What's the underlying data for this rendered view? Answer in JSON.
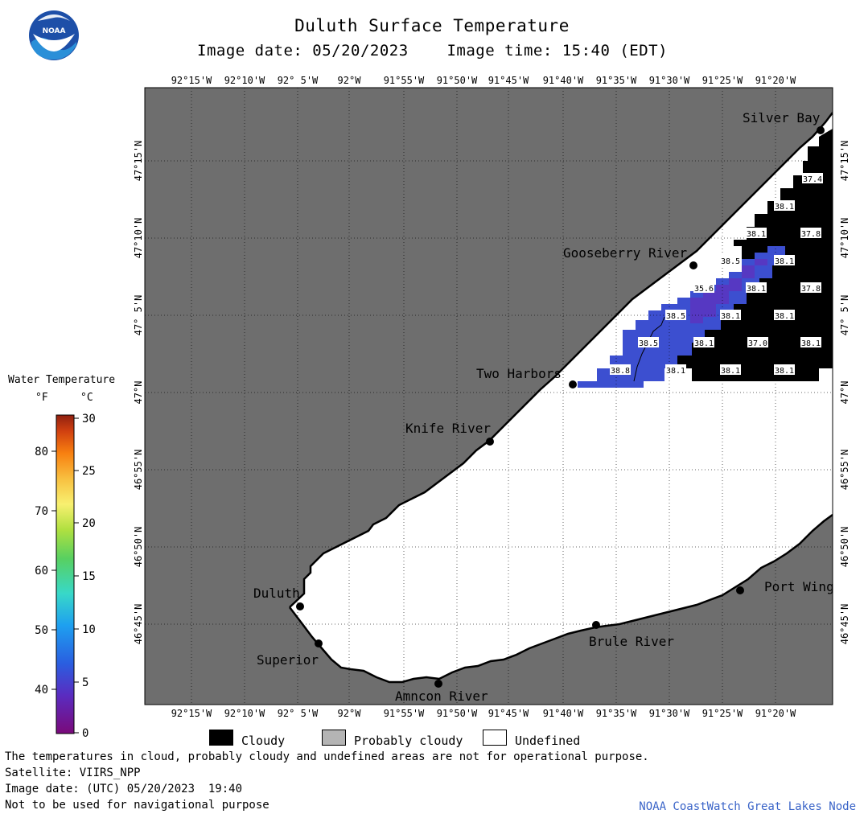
{
  "header": {
    "title": "Duluth Surface Temperature",
    "image_date_label": "Image date: 05/20/2023",
    "image_time_label": "Image time: 15:40 (EDT)"
  },
  "logo": {
    "text": "NOAA",
    "color": "#1d4fa8"
  },
  "map": {
    "longitude_ticks": [
      "92°15'W",
      "92°10'W",
      "92° 5'W",
      "92°W",
      "91°55'W",
      "91°50'W",
      "91°45'W",
      "91°40'W",
      "91°35'W",
      "91°30'W",
      "91°25'W",
      "91°20'W"
    ],
    "latitude_ticks": [
      "47°15'N",
      "47°10'N",
      "47° 5'N",
      "47°N",
      "46°55'N",
      "46°50'N",
      "46°45'N"
    ],
    "places": [
      {
        "name": "Silver Bay"
      },
      {
        "name": "Gooseberry River"
      },
      {
        "name": "Two Harbors"
      },
      {
        "name": "Knife River"
      },
      {
        "name": "Duluth"
      },
      {
        "name": "Superior"
      },
      {
        "name": "Amncon River"
      },
      {
        "name": "Brule River"
      },
      {
        "name": "Port Wing"
      }
    ],
    "temperature_labels": [
      "37.4",
      "38.1",
      "38.1",
      "37.8",
      "38.5",
      "38.1",
      "35.6",
      "38.1",
      "37.8",
      "38.5",
      "38.1",
      "38.1",
      "38.5",
      "38.1",
      "37.0",
      "38.1",
      "38.8",
      "38.1",
      "38.1",
      "38.1"
    ],
    "colors": {
      "land": "#6e6e6e",
      "cloud": "#000000",
      "undefined": "#ffffff",
      "water_cold": "#3c4fd0",
      "water_mid": "#4a3cc8",
      "water_purple": "#6a2fb8"
    }
  },
  "legend": {
    "title": "Water Temperature",
    "unit_f": "°F",
    "unit_c": "°C",
    "f_ticks": [
      "80",
      "70",
      "60",
      "50",
      "40"
    ],
    "c_ticks": [
      "30",
      "25",
      "20",
      "15",
      "10",
      "5",
      "0"
    ],
    "keys": [
      {
        "label": "Cloudy",
        "color": "#000000"
      },
      {
        "label": "Probably cloudy",
        "color": "#b4b4b4"
      },
      {
        "label": "Undefined",
        "color": "#ffffff"
      }
    ]
  },
  "footer": {
    "note": "The temperatures in cloud, probably cloudy and undefined areas are not for operational purpose.",
    "satellite": "Satellite: VIIRS_NPP",
    "utc_date": "Image date: (UTC) 05/20/2023  19:40",
    "nav_warning": "Not to be used for navigational purpose",
    "credit": "NOAA CoastWatch Great Lakes Node"
  }
}
